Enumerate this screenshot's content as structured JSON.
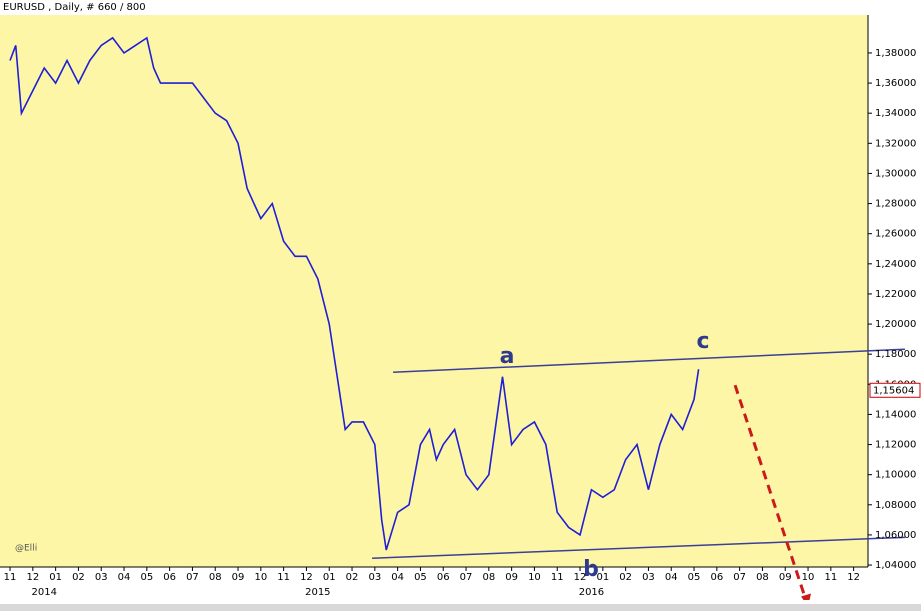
{
  "chart_data": {
    "type": "line",
    "title": "EURUSD , Daily, # 660 / 800",
    "watermark": "@Elli",
    "x": [
      0,
      0.25,
      0.5,
      1,
      1.5,
      2,
      2.5,
      3,
      3.5,
      4,
      4.5,
      5,
      5.5,
      6,
      6.3,
      6.6,
      7,
      7.5,
      8,
      8.5,
      9,
      9.5,
      10,
      10.4,
      11,
      11.5,
      12,
      12.5,
      13,
      13.5,
      14,
      14.4,
      14.7,
      15,
      15.5,
      16,
      16.3,
      16.5,
      17,
      17.5,
      18,
      18.4,
      18.7,
      19,
      19.5,
      20,
      20.5,
      21,
      21.6,
      22,
      22.5,
      23,
      23.5,
      24,
      24.5,
      25,
      25.5,
      26,
      26.5,
      27,
      27.5,
      28,
      28.5,
      29,
      29.5,
      30,
      30.2
    ],
    "series": [
      {
        "color": "#1f1fd6",
        "values": [
          1.375,
          1.385,
          1.34,
          1.355,
          1.37,
          1.36,
          1.375,
          1.36,
          1.375,
          1.385,
          1.39,
          1.38,
          1.385,
          1.39,
          1.37,
          1.36,
          1.36,
          1.36,
          1.36,
          1.35,
          1.34,
          1.335,
          1.32,
          1.29,
          1.27,
          1.28,
          1.255,
          1.245,
          1.245,
          1.23,
          1.2,
          1.16,
          1.13,
          1.135,
          1.135,
          1.12,
          1.07,
          1.05,
          1.075,
          1.08,
          1.12,
          1.13,
          1.11,
          1.12,
          1.13,
          1.1,
          1.09,
          1.1,
          1.165,
          1.12,
          1.13,
          1.135,
          1.12,
          1.075,
          1.065,
          1.06,
          1.09,
          1.085,
          1.09,
          1.11,
          1.12,
          1.09,
          1.12,
          1.14,
          1.13,
          1.15,
          1.17
        ]
      }
    ],
    "trend_lines": [
      {
        "color": "#3a3f9a",
        "x": [
          16.8,
          39.25
        ],
        "values": [
          1.168,
          1.1833
        ]
      },
      {
        "color": "#3a3f9a",
        "x": [
          15.88,
          39.25
        ],
        "values": [
          1.0445,
          1.0584
        ]
      }
    ],
    "projection": {
      "color": "#cc1a1a",
      "x": [
        31.8,
        35
      ],
      "values": [
        1.1594,
        1.0125
      ]
    },
    "wave_labels": [
      "a",
      "b",
      "c"
    ],
    "last_price": {
      "value": 1.15604,
      "label": "1,15604"
    },
    "xlim": [
      -0.44,
      37.63
    ],
    "ylim": [
      1.0387,
      1.4052
    ],
    "xticks": [
      {
        "value": 0,
        "label": "11"
      },
      {
        "value": 1,
        "label": "12"
      },
      {
        "value": 2,
        "label": "01"
      },
      {
        "value": 3,
        "label": "02"
      },
      {
        "value": 4,
        "label": "03"
      },
      {
        "value": 5,
        "label": "04"
      },
      {
        "value": 6,
        "label": "05"
      },
      {
        "value": 7,
        "label": "06"
      },
      {
        "value": 8,
        "label": "07"
      },
      {
        "value": 9,
        "label": "08"
      },
      {
        "value": 10,
        "label": "09"
      },
      {
        "value": 11,
        "label": "10"
      },
      {
        "value": 12,
        "label": "11"
      },
      {
        "value": 13,
        "label": "12"
      },
      {
        "value": 14,
        "label": "01"
      },
      {
        "value": 15,
        "label": "02"
      },
      {
        "value": 16,
        "label": "03"
      },
      {
        "value": 17,
        "label": "04"
      },
      {
        "value": 18,
        "label": "05"
      },
      {
        "value": 19,
        "label": "06"
      },
      {
        "value": 20,
        "label": "07"
      },
      {
        "value": 21,
        "label": "08"
      },
      {
        "value": 22,
        "label": "09"
      },
      {
        "value": 23,
        "label": "10"
      },
      {
        "value": 24,
        "label": "11"
      },
      {
        "value": 25,
        "label": "12"
      },
      {
        "value": 26,
        "label": "01"
      },
      {
        "value": 27,
        "label": "02"
      },
      {
        "value": 28,
        "label": "03"
      },
      {
        "value": 29,
        "label": "04"
      },
      {
        "value": 30,
        "label": "05"
      },
      {
        "value": 31,
        "label": "06"
      },
      {
        "value": 32,
        "label": "07"
      },
      {
        "value": 33,
        "label": "08"
      },
      {
        "value": 34,
        "label": "09"
      },
      {
        "value": 35,
        "label": "10"
      },
      {
        "value": 36,
        "label": "11"
      },
      {
        "value": 37,
        "label": "12"
      }
    ],
    "year_labels": [
      {
        "value": 1.5,
        "label": "2014"
      },
      {
        "value": 13.5,
        "label": "2015"
      },
      {
        "value": 25.5,
        "label": "2016"
      }
    ],
    "yticks": [
      {
        "value": 1.04,
        "label": "1,04000"
      },
      {
        "value": 1.06,
        "label": "1,06000"
      },
      {
        "value": 1.08,
        "label": "1,08000"
      },
      {
        "value": 1.1,
        "label": "1,10000"
      },
      {
        "value": 1.12,
        "label": "1,12000"
      },
      {
        "value": 1.14,
        "label": "1,14000"
      },
      {
        "value": 1.16,
        "label": "1,16000"
      },
      {
        "value": 1.18,
        "label": "1,18000"
      },
      {
        "value": 1.2,
        "label": "1,20000"
      },
      {
        "value": 1.22,
        "label": "1,22000"
      },
      {
        "value": 1.24,
        "label": "1,24000"
      },
      {
        "value": 1.26,
        "label": "1,26000"
      },
      {
        "value": 1.28,
        "label": "1,28000"
      },
      {
        "value": 1.3,
        "label": "1,30000"
      },
      {
        "value": 1.32,
        "label": "1,32000"
      },
      {
        "value": 1.34,
        "label": "1,34000"
      },
      {
        "value": 1.36,
        "label": "1,36000"
      },
      {
        "value": 1.38,
        "label": "1,38000"
      }
    ],
    "background": "#fdf6a6",
    "grid": false
  }
}
